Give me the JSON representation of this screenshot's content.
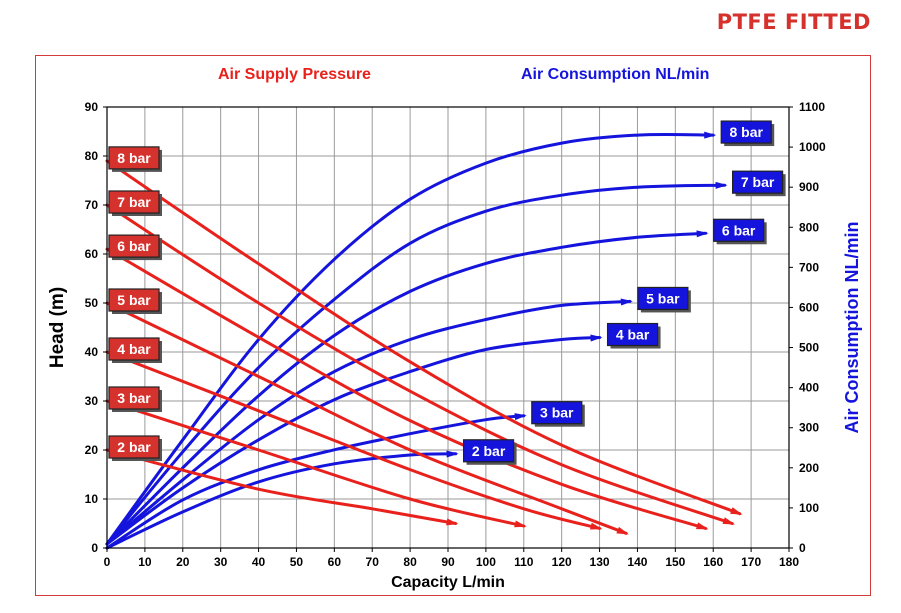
{
  "page_title": "PTFE FITTED",
  "colors": {
    "pressure": "#e8211c",
    "consumption": "#1414dd",
    "title": "#d6322d",
    "label_border": "#222222"
  },
  "chart_data": {
    "type": "line",
    "title": "",
    "header_left": "Air Supply Pressure",
    "header_right": "Air Consumption NL/min",
    "xlabel": "Capacity L/min",
    "ylabel": "Head (m)",
    "y2label": "Air Consumption NL/min",
    "xlim": [
      0,
      180
    ],
    "ylim": [
      0,
      90
    ],
    "y2lim": [
      0,
      1100
    ],
    "x_ticks": [
      "0",
      "10",
      "20",
      "30",
      "40",
      "50",
      "60",
      "70",
      "80",
      "90",
      "100",
      "110",
      "120",
      "130",
      "140",
      "150",
      "160",
      "170",
      "180"
    ],
    "y_ticks": [
      "0",
      "10",
      "20",
      "30",
      "40",
      "50",
      "60",
      "70",
      "80",
      "90"
    ],
    "y2_ticks": [
      "0",
      "100",
      "200",
      "300",
      "400",
      "500",
      "600",
      "700",
      "800",
      "900",
      "1000",
      "1100"
    ],
    "grid": true,
    "pressure_series": [
      {
        "name": "8 bar",
        "start_head": 79,
        "x": [
          0,
          40,
          80,
          120,
          167
        ],
        "y": [
          79,
          58,
          38,
          21,
          7
        ]
      },
      {
        "name": "7 bar",
        "start_head": 70,
        "x": [
          0,
          40,
          80,
          120,
          165
        ],
        "y": [
          70,
          50,
          32,
          17,
          5
        ]
      },
      {
        "name": "6 bar",
        "start_head": 61,
        "x": [
          0,
          40,
          80,
          120,
          158
        ],
        "y": [
          61,
          43,
          26,
          13,
          4
        ]
      },
      {
        "name": "5 bar",
        "start_head": 50,
        "x": [
          0,
          40,
          80,
          120,
          137
        ],
        "y": [
          50,
          35,
          20,
          8,
          3
        ]
      },
      {
        "name": "4 bar",
        "start_head": 40,
        "x": [
          0,
          40,
          80,
          110,
          130
        ],
        "y": [
          40,
          28,
          16,
          8,
          4
        ]
      },
      {
        "name": "3 bar",
        "start_head": 30,
        "x": [
          0,
          40,
          80,
          110
        ],
        "y": [
          30,
          20,
          10,
          4.5
        ]
      },
      {
        "name": "2 bar",
        "start_head": 20,
        "x": [
          0,
          40,
          70,
          92
        ],
        "y": [
          20,
          12,
          8,
          5
        ]
      }
    ],
    "consumption_series": [
      {
        "name": "8 bar",
        "x": [
          0,
          20,
          40,
          60,
          80,
          100,
          120,
          140,
          160
        ],
        "y": [
          10,
          270,
          520,
          720,
          870,
          960,
          1010,
          1030,
          1030
        ]
      },
      {
        "name": "7 bar",
        "x": [
          0,
          20,
          40,
          60,
          80,
          100,
          120,
          140,
          163
        ],
        "y": [
          10,
          240,
          450,
          620,
          760,
          840,
          880,
          900,
          905
        ]
      },
      {
        "name": "6 bar",
        "x": [
          0,
          20,
          40,
          60,
          80,
          100,
          120,
          140,
          158
        ],
        "y": [
          10,
          200,
          380,
          530,
          640,
          710,
          750,
          775,
          785
        ]
      },
      {
        "name": "5 bar",
        "x": [
          0,
          20,
          40,
          60,
          80,
          100,
          120,
          138
        ],
        "y": [
          10,
          170,
          320,
          440,
          520,
          570,
          605,
          615
        ]
      },
      {
        "name": "4 bar",
        "x": [
          0,
          20,
          40,
          60,
          80,
          100,
          120,
          130
        ],
        "y": [
          10,
          150,
          270,
          370,
          440,
          495,
          520,
          525
        ]
      },
      {
        "name": "3 bar",
        "x": [
          0,
          20,
          40,
          60,
          80,
          100,
          110
        ],
        "y": [
          0,
          120,
          195,
          245,
          285,
          320,
          330
        ]
      },
      {
        "name": "2 bar",
        "x": [
          0,
          20,
          40,
          60,
          80,
          92
        ],
        "y": [
          0,
          90,
          165,
          210,
          232,
          235
        ]
      }
    ]
  }
}
